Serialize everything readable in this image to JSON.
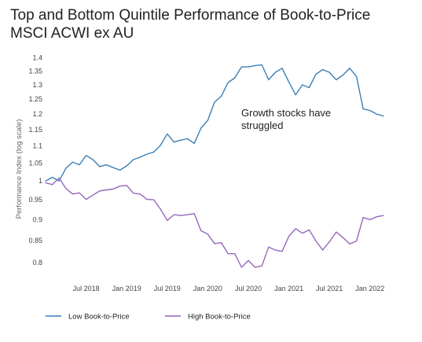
{
  "title_line1": "Top and Bottom Quintile Performance of Book-to-Price",
  "title_line2": "MSCI ACWI ex AU",
  "chart_data": {
    "type": "line",
    "title": "Top and Bottom Quintile Performance of Book-to-Price MSCI ACWI ex AU",
    "xlabel": "",
    "ylabel": "Performance Index (log scale)",
    "y_scale": "log",
    "ylim": [
      0.77,
      1.41
    ],
    "y_ticks": [
      "1.4",
      "1.35",
      "1.3",
      "1.25",
      "1.2",
      "1.15",
      "1.1",
      "1.05",
      "1",
      "0.95",
      "0.9",
      "0.85",
      "0.8"
    ],
    "x_ticks": [
      "Jul 2018",
      "Jan 2019",
      "Jul 2019",
      "Jan 2020",
      "Jul 2020",
      "Jan 2021",
      "Jul 2021",
      "Jan 2022"
    ],
    "x_tick_dates": [
      "2018-07",
      "2019-01",
      "2019-07",
      "2020-01",
      "2020-07",
      "2021-01",
      "2021-07",
      "2022-01"
    ],
    "x": [
      "2018-01",
      "2018-02",
      "2018-03",
      "2018-04",
      "2018-05",
      "2018-06",
      "2018-07",
      "2018-08",
      "2018-09",
      "2018-10",
      "2018-11",
      "2018-12",
      "2019-01",
      "2019-02",
      "2019-03",
      "2019-04",
      "2019-05",
      "2019-06",
      "2019-07",
      "2019-08",
      "2019-09",
      "2019-10",
      "2019-11",
      "2019-12",
      "2020-01",
      "2020-02",
      "2020-03",
      "2020-04",
      "2020-05",
      "2020-06",
      "2020-07",
      "2020-08",
      "2020-09",
      "2020-10",
      "2020-11",
      "2020-12",
      "2021-01",
      "2021-02",
      "2021-03",
      "2021-04",
      "2021-05",
      "2021-06",
      "2021-07",
      "2021-08",
      "2021-09",
      "2021-10",
      "2021-11",
      "2021-12",
      "2022-01",
      "2022-02",
      "2022-03"
    ],
    "xlim": [
      "2018-01",
      "2022-03"
    ],
    "grid": false,
    "legend_position": "bottom",
    "series": [
      {
        "name": "Low Book-to-Price",
        "color": "#3b7fb5",
        "values": [
          1.0,
          1.01,
          1.0,
          1.035,
          1.053,
          1.045,
          1.072,
          1.06,
          1.04,
          1.045,
          1.037,
          1.03,
          1.042,
          1.06,
          1.067,
          1.076,
          1.082,
          1.102,
          1.137,
          1.112,
          1.118,
          1.122,
          1.108,
          1.155,
          1.18,
          1.24,
          1.26,
          1.308,
          1.325,
          1.365,
          1.365,
          1.37,
          1.373,
          1.318,
          1.345,
          1.36,
          1.31,
          1.265,
          1.3,
          1.29,
          1.338,
          1.355,
          1.345,
          1.318,
          1.335,
          1.36,
          1.33,
          1.217,
          1.212,
          1.2,
          1.194
        ]
      },
      {
        "name": "High Book-to-Price",
        "color": "#9467bd",
        "values": [
          0.995,
          0.99,
          1.008,
          0.98,
          0.965,
          0.968,
          0.951,
          0.962,
          0.973,
          0.976,
          0.978,
          0.986,
          0.988,
          0.967,
          0.965,
          0.951,
          0.95,
          0.926,
          0.898,
          0.912,
          0.91,
          0.912,
          0.915,
          0.873,
          0.865,
          0.843,
          0.845,
          0.82,
          0.82,
          0.79,
          0.805,
          0.79,
          0.793,
          0.835,
          0.828,
          0.825,
          0.86,
          0.878,
          0.867,
          0.875,
          0.849,
          0.828,
          0.847,
          0.87,
          0.857,
          0.842,
          0.849,
          0.905,
          0.9,
          0.907,
          0.91
        ]
      }
    ],
    "annotations": [
      {
        "text": "Growth stocks have struggled",
        "lines": [
          "Growth stocks have",
          "struggled"
        ],
        "x": "2020-07",
        "y": 1.21
      }
    ]
  },
  "legend": {
    "items": [
      {
        "label": "Low Book-to-Price",
        "color": "#3b7fb5"
      },
      {
        "label": "High Book-to-Price",
        "color": "#9467bd"
      }
    ]
  }
}
